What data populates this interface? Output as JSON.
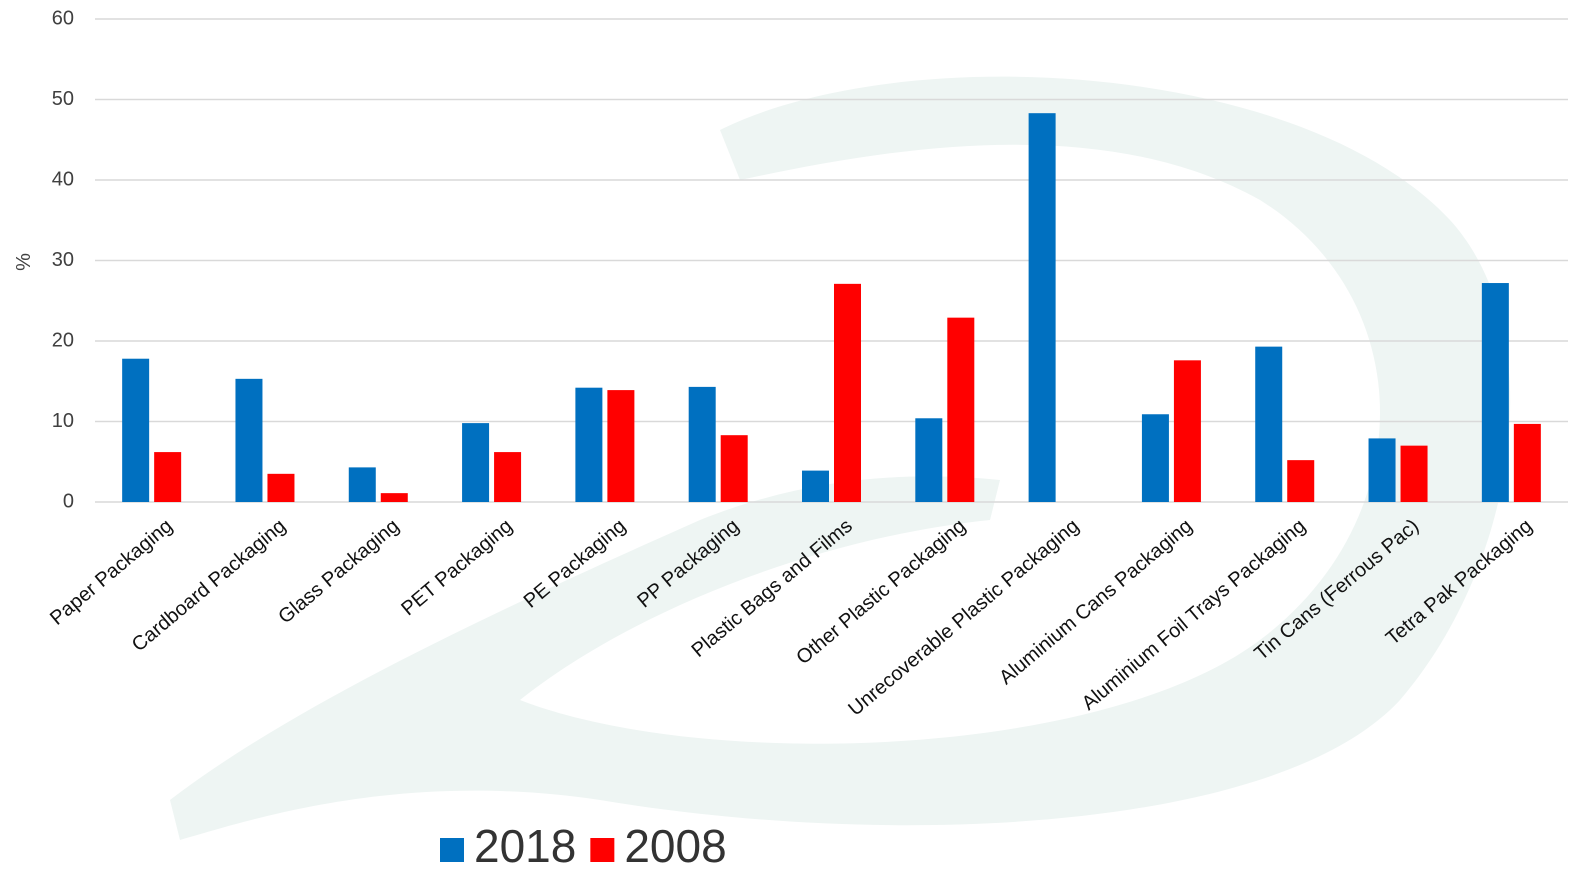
{
  "chart_data": {
    "type": "bar",
    "ylabel": "%",
    "categories": [
      "Paper Packaging",
      "Cardboard Packaging",
      "Glass Packaging",
      "PET Packaging",
      "PE Packaging",
      "PP Packaging",
      "Plastic Bags and Films",
      "Other Plastic Packaging",
      "Unrecoverable Plastic Packaging",
      "Aluminium Cans Packaging",
      "Aluminium Foil Trays Packaging",
      "Tin Cans (Ferrous Pac)",
      "Tetra Pak Packaging"
    ],
    "series": [
      {
        "name": "2018",
        "color": "#0070c0",
        "values": [
          17.8,
          15.3,
          4.3,
          9.8,
          14.2,
          14.3,
          3.9,
          10.4,
          48.3,
          10.9,
          19.3,
          7.9,
          27.2
        ]
      },
      {
        "name": "2008",
        "color": "#ff0000",
        "values": [
          6.2,
          3.5,
          1.1,
          6.2,
          13.9,
          8.3,
          27.1,
          22.9,
          null,
          17.6,
          5.2,
          7.0,
          9.7
        ]
      }
    ],
    "ylim": [
      0,
      60
    ],
    "yticks": [
      0,
      10,
      20,
      30,
      40,
      50,
      60
    ],
    "grid": true,
    "legend": "bottom"
  }
}
